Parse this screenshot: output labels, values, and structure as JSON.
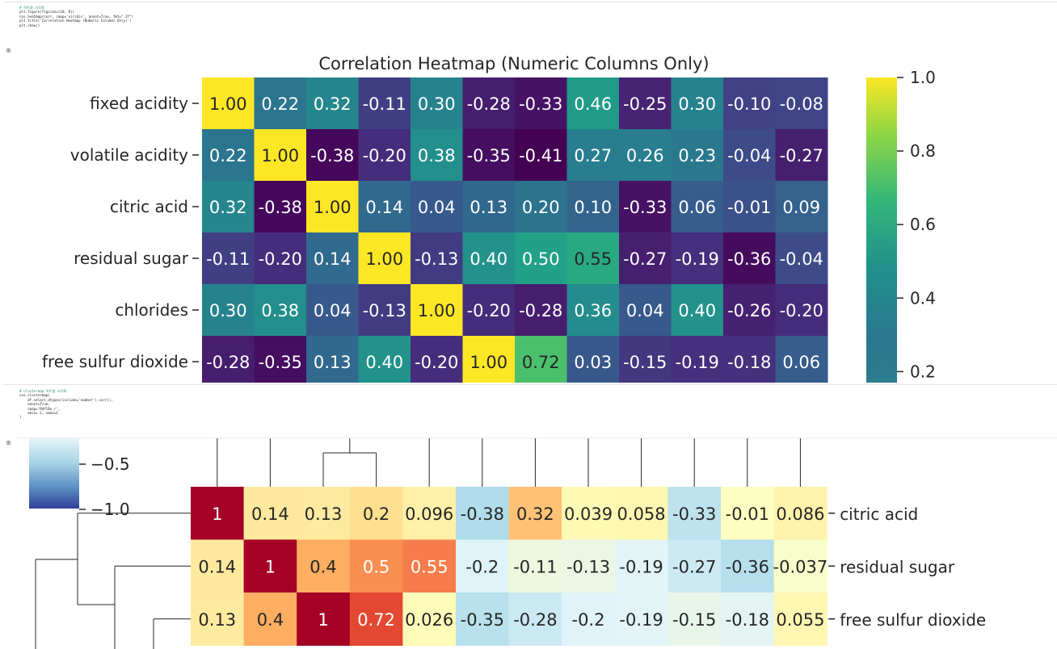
{
  "cell1": {
    "code_lines": [
      {
        "kind": "comment",
        "text": "# 히트맵 시각화"
      },
      {
        "kind": "code",
        "text": "plt.figure(figsize=(10, 8))"
      },
      {
        "kind": "code",
        "text": "sns.heatmap(corr, cmap='viridis', annot=True, fmt=\".2f\")"
      },
      {
        "kind": "code",
        "text": "plt.title('Correlation Heatmap (Numeric Columns Only)')"
      },
      {
        "kind": "code",
        "text": "plt.show()"
      }
    ],
    "output_icon": "output-toggle-icon"
  },
  "cell2": {
    "code_lines": [
      {
        "kind": "comment",
        "text": "# clustermap 히트맵 시각화"
      },
      {
        "kind": "code",
        "text": "sns.clustermap("
      },
      {
        "kind": "code",
        "text": "    df.select_dtypes(include='number').corr(),"
      },
      {
        "kind": "code",
        "text": "    annot=True,"
      },
      {
        "kind": "code",
        "text": "    cmap='RdYlBu_r',"
      },
      {
        "kind": "code",
        "text": "    vmin=-1, vmax=1"
      },
      {
        "kind": "code",
        "text": ")"
      }
    ],
    "output_icon": "output-toggle-icon"
  },
  "chart_data": [
    {
      "type": "heatmap",
      "title": "Correlation Heatmap (Numeric Columns Only)",
      "colormap": "viridis",
      "row_labels": [
        "fixed acidity",
        "volatile acidity",
        "citric acid",
        "residual sugar",
        "chlorides",
        "free sulfur dioxide"
      ],
      "values": [
        [
          "1.00",
          "0.22",
          "0.32",
          "-0.11",
          "0.30",
          "-0.28",
          "-0.33",
          "0.46",
          "-0.25",
          "0.30",
          "-0.10",
          "-0.08"
        ],
        [
          "0.22",
          "1.00",
          "-0.38",
          "-0.20",
          "0.38",
          "-0.35",
          "-0.41",
          "0.27",
          "0.26",
          "0.23",
          "-0.04",
          "-0.27"
        ],
        [
          "0.32",
          "-0.38",
          "1.00",
          "0.14",
          "0.04",
          "0.13",
          "0.20",
          "0.10",
          "-0.33",
          "0.06",
          "-0.01",
          "0.09"
        ],
        [
          "-0.11",
          "-0.20",
          "0.14",
          "1.00",
          "-0.13",
          "0.40",
          "0.50",
          "0.55",
          "-0.27",
          "-0.19",
          "-0.36",
          "-0.04"
        ],
        [
          "0.30",
          "0.38",
          "0.04",
          "-0.13",
          "1.00",
          "-0.20",
          "-0.28",
          "0.36",
          "0.04",
          "0.40",
          "-0.26",
          "-0.20"
        ],
        [
          "-0.28",
          "-0.35",
          "0.13",
          "0.40",
          "-0.20",
          "1.00",
          "0.72",
          "0.03",
          "-0.15",
          "-0.19",
          "-0.18",
          "0.06"
        ]
      ],
      "colorbar": {
        "ticks": [
          "1.0",
          "0.8",
          "0.6",
          "0.4",
          "0.2"
        ],
        "visible_range": [
          0.17,
          1.0
        ]
      }
    },
    {
      "type": "heatmap",
      "colormap": "RdYlBu_r",
      "vmin": -1,
      "vmax": 1,
      "row_labels": [
        "citric acid",
        "residual sugar",
        "free sulfur dioxide"
      ],
      "values": [
        [
          "1",
          "0.14",
          "0.13",
          "0.2",
          "0.096",
          "-0.38",
          "0.32",
          "0.039",
          "0.058",
          "-0.33",
          "-0.01",
          "0.086"
        ],
        [
          "0.14",
          "1",
          "0.4",
          "0.5",
          "0.55",
          "-0.2",
          "-0.11",
          "-0.13",
          "-0.19",
          "-0.27",
          "-0.36",
          "-0.037"
        ],
        [
          "0.13",
          "0.4",
          "1",
          "0.72",
          "0.026",
          "-0.35",
          "-0.28",
          "-0.2",
          "-0.19",
          "-0.15",
          "-0.18",
          "0.055"
        ]
      ],
      "colorbar": {
        "ticks": [
          "−0.5",
          "−1.0"
        ]
      }
    }
  ]
}
